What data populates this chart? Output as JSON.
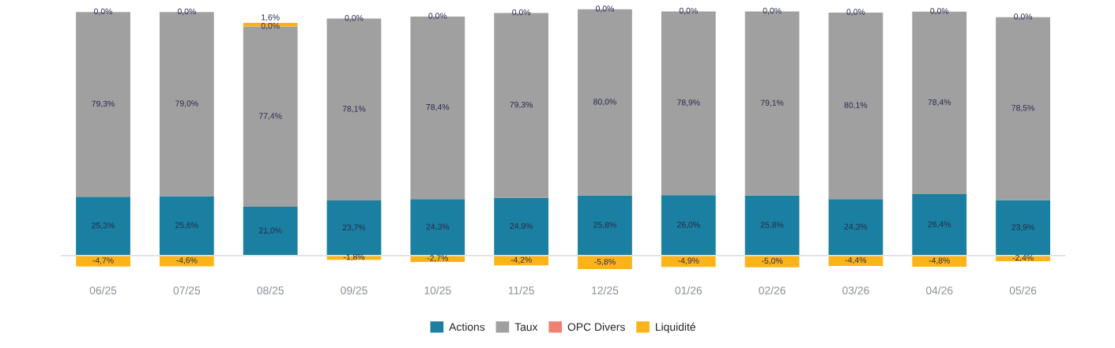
{
  "chart_data": {
    "type": "bar",
    "stacked": true,
    "legend": "bottom",
    "categories": [
      "06/25",
      "07/25",
      "08/25",
      "09/25",
      "10/25",
      "11/25",
      "12/25",
      "01/26",
      "02/26",
      "03/26",
      "04/26",
      "05/26"
    ],
    "series": [
      {
        "name": "Actions",
        "color": "#1a7fa0",
        "values": [
          25.3,
          25.6,
          21.0,
          23.7,
          24.3,
          24.9,
          25.8,
          26.0,
          25.8,
          24.3,
          26.4,
          23.9
        ],
        "value_labels": [
          "25,3%",
          "25,6%",
          "21,0%",
          "23,7%",
          "24,3%",
          "24,9%",
          "25,8%",
          "26,0%",
          "25,8%",
          "24,3%",
          "26,4%",
          "23,9%"
        ]
      },
      {
        "name": "Taux",
        "color": "#a0a0a0",
        "values": [
          79.3,
          79.0,
          77.4,
          78.1,
          78.4,
          79.3,
          80.0,
          78.9,
          79.1,
          80.1,
          78.4,
          78.5
        ],
        "value_labels": [
          "79,3%",
          "79,0%",
          "77,4%",
          "78,1%",
          "78,4%",
          "79,3%",
          "80,0%",
          "78,9%",
          "79,1%",
          "80,1%",
          "78,4%",
          "78,5%"
        ]
      },
      {
        "name": "OPC Divers",
        "color": "#f08070",
        "values": [
          0.0,
          0.0,
          0.0,
          0.0,
          0.0,
          0.0,
          0.0,
          0.0,
          0.0,
          0.0,
          0.0,
          0.0
        ],
        "value_labels": [
          "0,0%",
          "0,0%",
          "0,0%",
          "0,0%",
          "0,0%",
          "0,0%",
          "0,0%",
          "0,0%",
          "0,0%",
          "0,0%",
          "0,0%",
          "0,0%"
        ]
      },
      {
        "name": "Liquidité",
        "color": "#fbb417",
        "values": [
          -4.7,
          -4.6,
          1.6,
          -1.8,
          -2.7,
          -4.2,
          -5.8,
          -4.9,
          -5.0,
          -4.4,
          -4.8,
          -2.4
        ],
        "value_labels": [
          "-4,7%",
          "-4,6%",
          "1,6%",
          "-1,8%",
          "-2,7%",
          "-4,2%",
          "-5,8%",
          "-4,9%",
          "-5,0%",
          "-4,4%",
          "-4,8%",
          "-2,4%"
        ]
      }
    ]
  }
}
